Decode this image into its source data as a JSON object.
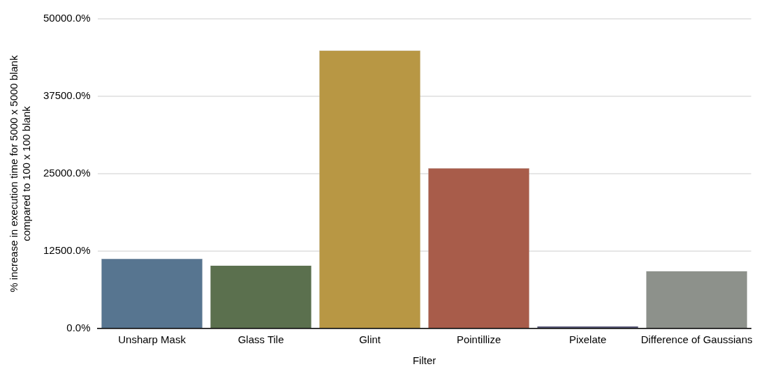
{
  "chart_data": {
    "type": "bar",
    "xlabel": "Filter",
    "ylabel": "% increase in execution time for 5000 x 5000 blank compared to 100 x 100 blank",
    "categories": [
      "Unsharp Mask",
      "Glass Tile",
      "Glint",
      "Pointillize",
      "Pixelate",
      "Difference of Gaussians"
    ],
    "values": [
      11300,
      10200,
      44900,
      25900,
      400,
      9300
    ],
    "colors": [
      "#577590",
      "#5b704e",
      "#b89744",
      "#a85c4a",
      "#5a5a78",
      "#8d918b"
    ],
    "ylim": [
      0,
      50000
    ],
    "yticks": [
      {
        "value": 0,
        "label": "0.0%"
      },
      {
        "value": 12500,
        "label": "12500.0%"
      },
      {
        "value": 25000,
        "label": "25000.0%"
      },
      {
        "value": 37500,
        "label": "37500.0%"
      },
      {
        "value": 50000,
        "label": "50000.0%"
      }
    ],
    "grid": "y",
    "legend": false
  }
}
